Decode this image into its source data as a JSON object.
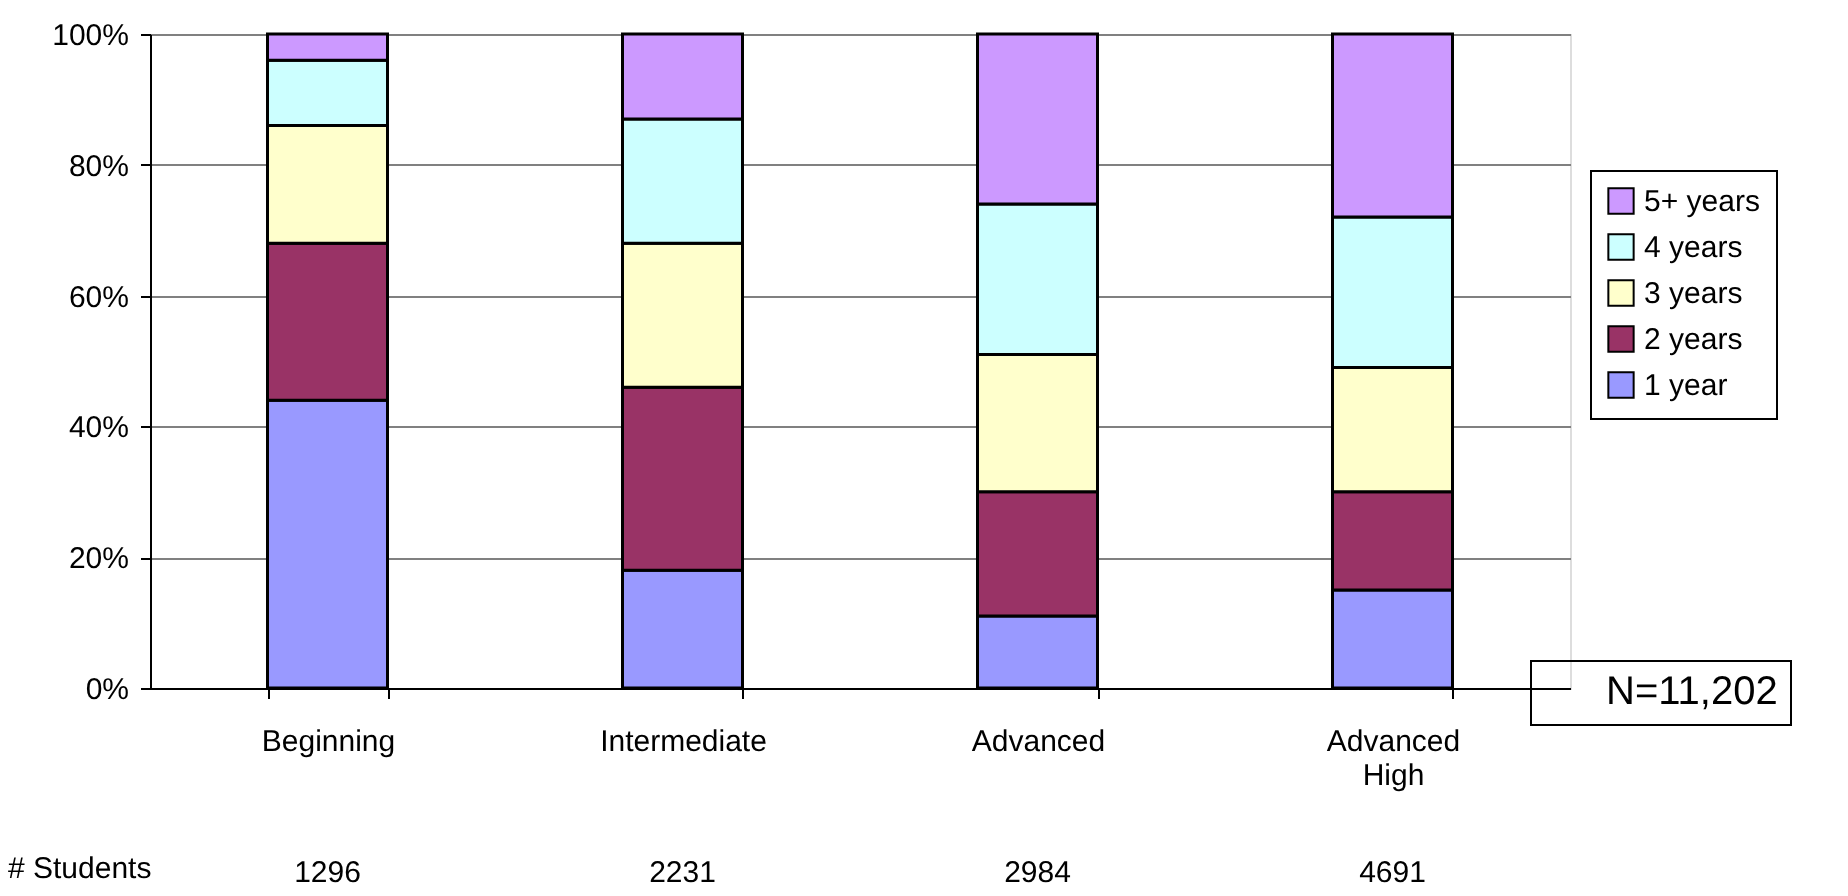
{
  "chart_data": {
    "type": "bar",
    "stacked": true,
    "categories": [
      "Beginning",
      "Intermediate",
      "Advanced",
      "Advanced High"
    ],
    "series": [
      {
        "name": "1 year",
        "color": "#9999ff",
        "values": [
          44,
          18,
          11,
          15
        ]
      },
      {
        "name": "2 years",
        "color": "#993366",
        "values": [
          24,
          28,
          19,
          15
        ]
      },
      {
        "name": "3 years",
        "color": "#ffffcc",
        "values": [
          18,
          22,
          21,
          19
        ]
      },
      {
        "name": "4 years",
        "color": "#ccffff",
        "values": [
          10,
          19,
          23,
          23
        ]
      },
      {
        "name": "5+ years",
        "color": "#cc99ff",
        "values": [
          4,
          13,
          26,
          28
        ]
      }
    ],
    "ylim": [
      0,
      100
    ],
    "yticks": [
      {
        "value": 0,
        "label": "0%"
      },
      {
        "value": 20,
        "label": "20%"
      },
      {
        "value": 40,
        "label": "40%"
      },
      {
        "value": 60,
        "label": "60%"
      },
      {
        "value": 80,
        "label": "80%"
      },
      {
        "value": 100,
        "label": "100%"
      }
    ],
    "grid": "y",
    "legend": "right",
    "annotations": [
      "# Students",
      "1296",
      "2231",
      "2984",
      "4691",
      "N=11,202"
    ]
  }
}
